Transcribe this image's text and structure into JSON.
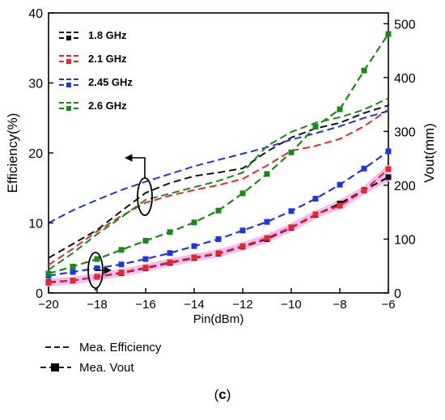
{
  "caption": {
    "open": "(",
    "letter": "c",
    "close": ")"
  },
  "colors": {
    "1.8 GHz": "#111111",
    "2.1 GHz": "#e8262b",
    "2.45 GHz": "#1f35e0",
    "2.6 GHz": "#178a17",
    "vout_highlight": "#f3bdf3"
  },
  "chart_data": {
    "type": "line",
    "xlabel": "Pin(dBm)",
    "ylabel_left": "Efficiency(%)",
    "ylabel_right": "Vout(mm)",
    "xlim": [
      -20,
      -6
    ],
    "ylim_left": [
      0,
      40
    ],
    "ylim_right": [
      0,
      520
    ],
    "x_ticks": [
      "−20",
      "−18",
      "−16",
      "−14",
      "−12",
      "−10",
      "−8",
      "−6"
    ],
    "y_left_ticks": [
      "0",
      "10",
      "20",
      "30",
      "40"
    ],
    "y_right_ticks": [
      "0",
      "100",
      "200",
      "300",
      "400",
      "500"
    ],
    "grid": false,
    "legend_top": {
      "placement": "top-left inside",
      "entries": [
        "1.8 GHz",
        "2.1 GHz",
        "2.45 GHz",
        "2.6 GHz"
      ]
    },
    "legend_bottom": {
      "placement": "below plot",
      "entries": [
        "Mea. Efficiency",
        "Mea. Vout"
      ]
    },
    "efficiency_series": [
      {
        "name": "1.8 GHz",
        "x": [
          -20,
          -19,
          -18,
          -17,
          -16,
          -15,
          -14,
          -13,
          -12,
          -11,
          -10,
          -9,
          -8,
          -7,
          -6
        ],
        "y": [
          5,
          7,
          9,
          11.7,
          14.3,
          15.7,
          16.7,
          17.2,
          17.8,
          20.2,
          22.2,
          23.5,
          24.3,
          25.7,
          26.8
        ]
      },
      {
        "name": "2.1 GHz",
        "x": [
          -20,
          -19,
          -18,
          -17,
          -16,
          -15,
          -14,
          -13,
          -12,
          -11,
          -10,
          -9,
          -8,
          -7,
          -6
        ],
        "y": [
          4,
          6.3,
          8.8,
          11,
          12.9,
          13.9,
          14.7,
          15.4,
          16.3,
          18.2,
          20.3,
          21,
          22,
          23.8,
          26.2
        ]
      },
      {
        "name": "2.45 GHz",
        "x": [
          -20,
          -19,
          -18,
          -17,
          -16,
          -15,
          -14,
          -13,
          -12,
          -11,
          -10,
          -9,
          -8,
          -7,
          -6
        ],
        "y": [
          10,
          11.8,
          13.3,
          14.7,
          15.9,
          17,
          18.1,
          19,
          19.9,
          20.8,
          21.9,
          22.8,
          23.8,
          25,
          26
        ]
      },
      {
        "name": "2.6 GHz",
        "x": [
          -20,
          -19,
          -18,
          -17,
          -16,
          -15,
          -14,
          -13,
          -12,
          -11,
          -10,
          -9,
          -8,
          -7,
          -6
        ],
        "y": [
          3.3,
          5.7,
          8.4,
          10.8,
          13.3,
          14.2,
          15.1,
          16,
          17.2,
          21,
          23,
          24.3,
          25.1,
          26.2,
          27.8
        ]
      }
    ],
    "vout_series": [
      {
        "name": "1.8 GHz",
        "x": [
          -20,
          -19,
          -18,
          -17,
          -16,
          -15,
          -14,
          -13,
          -12,
          -11,
          -10,
          -9,
          -8,
          -7,
          -6
        ],
        "y": [
          20,
          23,
          30,
          37,
          46,
          56,
          65,
          73,
          86,
          100,
          121,
          145,
          166,
          191,
          215
        ]
      },
      {
        "name": "2.1 GHz",
        "x": [
          -20,
          -19,
          -18,
          -17,
          -16,
          -15,
          -14,
          -13,
          -12,
          -11,
          -10,
          -9,
          -8,
          -7,
          -6
        ],
        "y": [
          19,
          23,
          30,
          38,
          47,
          57,
          66,
          74,
          87,
          102,
          122,
          146,
          162,
          190,
          230
        ]
      },
      {
        "name": "2.45 GHz",
        "x": [
          -20,
          -19,
          -18,
          -17,
          -16,
          -15,
          -14,
          -13,
          -12,
          -11,
          -10,
          -9,
          -8,
          -7,
          -6
        ],
        "y": [
          32,
          39,
          46,
          53,
          63,
          74,
          87,
          100,
          116,
          132,
          152,
          175,
          201,
          231,
          263
        ]
      },
      {
        "name": "2.6 GHz",
        "x": [
          -20,
          -19,
          -18,
          -17,
          -16,
          -15,
          -14,
          -13,
          -12,
          -11,
          -10,
          -9,
          -8,
          -7,
          -6
        ],
        "y": [
          36,
          49,
          63,
          80,
          97,
          113,
          131,
          153,
          185,
          221,
          261,
          309,
          341,
          413,
          481
        ]
      }
    ]
  }
}
